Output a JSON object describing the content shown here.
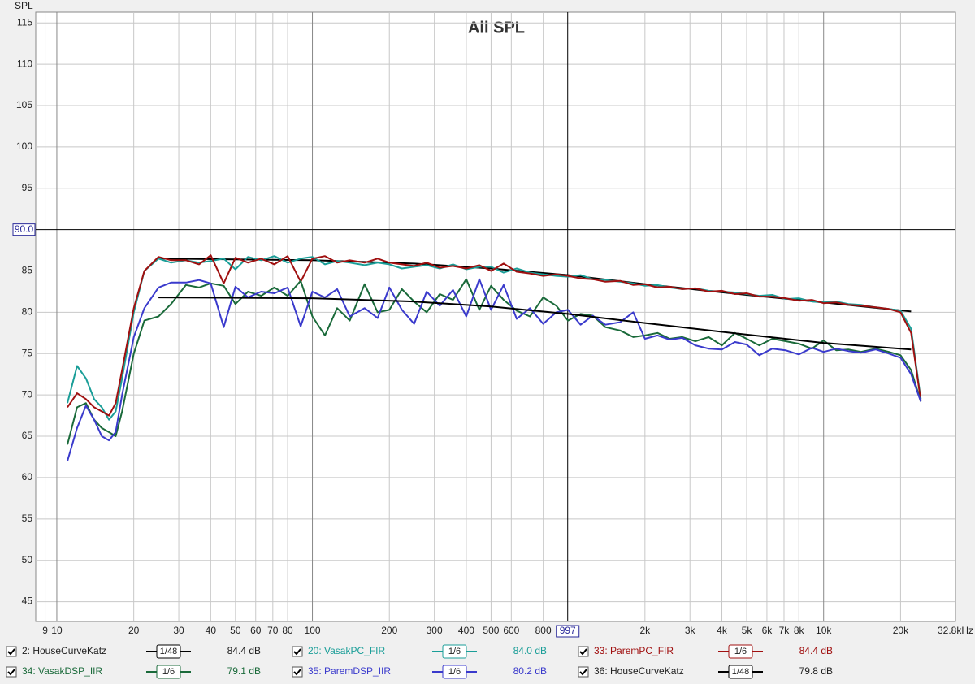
{
  "chart_data": {
    "type": "line",
    "title": "All SPL",
    "y_label": "SPL",
    "log_x": true,
    "xlim": [
      8.27,
      32800
    ],
    "ylim": [
      42.6,
      116.3
    ],
    "xticks": [
      9,
      10,
      20,
      30,
      40,
      50,
      60,
      70,
      80,
      100,
      200,
      300,
      400,
      500,
      600,
      800,
      {
        "value": 2000,
        "label": "2k"
      },
      {
        "value": 3000,
        "label": "3k"
      },
      {
        "value": 4000,
        "label": "4k"
      },
      {
        "value": 5000,
        "label": "5k"
      },
      {
        "value": 6000,
        "label": "6k"
      },
      {
        "value": 7000,
        "label": "7k"
      },
      {
        "value": 8000,
        "label": "8k"
      },
      {
        "value": 10000,
        "label": "10k"
      },
      {
        "value": 20000,
        "label": "20k"
      },
      {
        "value": 32800,
        "label": "32.8kHz"
      }
    ],
    "yticks": [
      45,
      50,
      55,
      60,
      65,
      70,
      75,
      80,
      85,
      95,
      100,
      105,
      110,
      115
    ],
    "cursor_x": 997,
    "cursor_y": {
      "value": 90,
      "label": "90.0"
    },
    "x": [
      11,
      12,
      13,
      14,
      15,
      16,
      17,
      18,
      20,
      22,
      25,
      28,
      32,
      36,
      40,
      45,
      50,
      56,
      63,
      71,
      80,
      90,
      100,
      112,
      125,
      140,
      160,
      180,
      200,
      224,
      250,
      280,
      315,
      355,
      400,
      450,
      500,
      560,
      630,
      710,
      800,
      900,
      1000,
      1120,
      1250,
      1400,
      1600,
      1800,
      2000,
      2240,
      2500,
      2800,
      3150,
      3550,
      4000,
      4500,
      5000,
      5600,
      6300,
      7100,
      8000,
      9000,
      10000,
      11200,
      12500,
      14000,
      16000,
      18000,
      20000,
      22000,
      24000
    ],
    "series": [
      {
        "name": "2: HouseCurveKatz",
        "color": "#000000",
        "smoothing": "1/48",
        "level": "84.4 dB",
        "x": [
          25,
          100,
          250,
          500,
          1000,
          2000,
          5000,
          10000,
          22000
        ],
        "values": [
          86.5,
          86.3,
          85.9,
          85.3,
          84.5,
          83.4,
          82.1,
          81.2,
          80.1
        ]
      },
      {
        "name": "20: VasakPC_FIR",
        "color": "#1a9e98",
        "smoothing": "1/6",
        "level": "84.0 dB",
        "values": [
          69,
          73.5,
          72,
          69.5,
          68.5,
          67,
          68,
          72,
          80,
          85,
          86.5,
          86,
          86.3,
          86,
          86.2,
          86.5,
          85.2,
          86.7,
          86.3,
          86.8,
          86,
          86.5,
          86.7,
          85.8,
          86.2,
          86,
          85.7,
          86,
          85.8,
          85.3,
          85.5,
          85.7,
          85.3,
          85.8,
          85.2,
          85.5,
          85.5,
          84.8,
          85.3,
          84.8,
          84.6,
          84.4,
          84.3,
          84.5,
          84.0,
          83.9,
          83.7,
          83.5,
          83.2,
          83.3,
          83.0,
          82.8,
          82.9,
          82.6,
          82.5,
          82.4,
          82.2,
          82.0,
          82.1,
          81.6,
          81.7,
          81.3,
          81.2,
          81.3,
          81.0,
          80.9,
          80.6,
          80.4,
          80.2,
          78,
          69.5
        ]
      },
      {
        "name": "33: ParemPC_FIR",
        "color": "#a01010",
        "smoothing": "1/6",
        "level": "84.4 dB",
        "values": [
          68.5,
          70.2,
          69.5,
          68.5,
          68,
          67.5,
          69,
          73,
          80.5,
          85,
          86.7,
          86.3,
          86.3,
          85.8,
          86.9,
          83.5,
          86.6,
          86,
          86.5,
          85.8,
          86.8,
          83.7,
          86.5,
          86.8,
          86,
          86.3,
          86,
          86.5,
          86,
          85.8,
          85.6,
          86,
          85.4,
          85.6,
          85.3,
          85.7,
          85,
          85.9,
          84.9,
          84.7,
          84.4,
          84.6,
          84.4,
          84.1,
          84.0,
          83.7,
          83.8,
          83.3,
          83.4,
          83.0,
          83.1,
          82.8,
          82.9,
          82.5,
          82.6,
          82.2,
          82.3,
          81.9,
          81.9,
          81.7,
          81.4,
          81.5,
          81.1,
          81.2,
          80.9,
          80.8,
          80.6,
          80.4,
          80.0,
          77.5,
          69.3
        ]
      },
      {
        "name": "34: VasakDSP_IIR",
        "color": "#1a6a3a",
        "smoothing": "1/6",
        "level": "79.1 dB",
        "values": [
          64,
          68.5,
          69,
          67,
          66,
          65.5,
          65,
          68,
          75,
          79,
          79.5,
          81,
          83.3,
          83,
          83.5,
          83.2,
          81,
          82.5,
          82,
          83,
          82,
          83.8,
          79.5,
          77.2,
          80.5,
          79,
          83.4,
          80,
          80.3,
          82.8,
          81.3,
          80,
          82.2,
          81.5,
          84,
          80.3,
          83.2,
          81.5,
          80.2,
          79.5,
          81.8,
          80.8,
          79,
          79.8,
          79.6,
          78.2,
          77.8,
          77,
          77.2,
          77.5,
          76.8,
          77,
          76.5,
          77,
          76,
          77.5,
          76.8,
          76,
          76.8,
          76.5,
          76.2,
          75.6,
          76.6,
          75.4,
          75.5,
          75.2,
          75.6,
          75.2,
          74.8,
          73,
          69.2
        ]
      },
      {
        "name": "35: ParemDSP_IIR",
        "color": "#3a3acc",
        "smoothing": "1/6",
        "level": "80.2 dB",
        "values": [
          62,
          66,
          68.7,
          67,
          65,
          64.5,
          65.5,
          70,
          77,
          80.5,
          83,
          83.6,
          83.6,
          83.9,
          83.5,
          78.2,
          83.1,
          81.8,
          82.5,
          82.3,
          83,
          78.3,
          82.5,
          81.8,
          82.8,
          79.5,
          80.5,
          79.3,
          83,
          80.3,
          78.6,
          82.5,
          80.8,
          82.7,
          79.5,
          84,
          80.3,
          83.3,
          79.2,
          80.5,
          78.6,
          80,
          80.3,
          78.5,
          79.6,
          78.5,
          78.8,
          80,
          76.8,
          77.2,
          76.7,
          76.9,
          76,
          75.6,
          75.5,
          76.4,
          76.1,
          74.8,
          75.6,
          75.4,
          74.9,
          75.7,
          75.2,
          75.6,
          75.3,
          75.1,
          75.5,
          75,
          74.5,
          72.5,
          69.2
        ]
      },
      {
        "name": "36: HouseCurveKatz",
        "color": "#000000",
        "smoothing": "1/48",
        "level": "79.8 dB",
        "x": [
          25,
          100,
          250,
          500,
          1000,
          2000,
          5000,
          10000,
          22000
        ],
        "values": [
          81.8,
          81.7,
          81.3,
          80.7,
          79.8,
          78.7,
          77.3,
          76.3,
          75.5
        ]
      }
    ]
  }
}
